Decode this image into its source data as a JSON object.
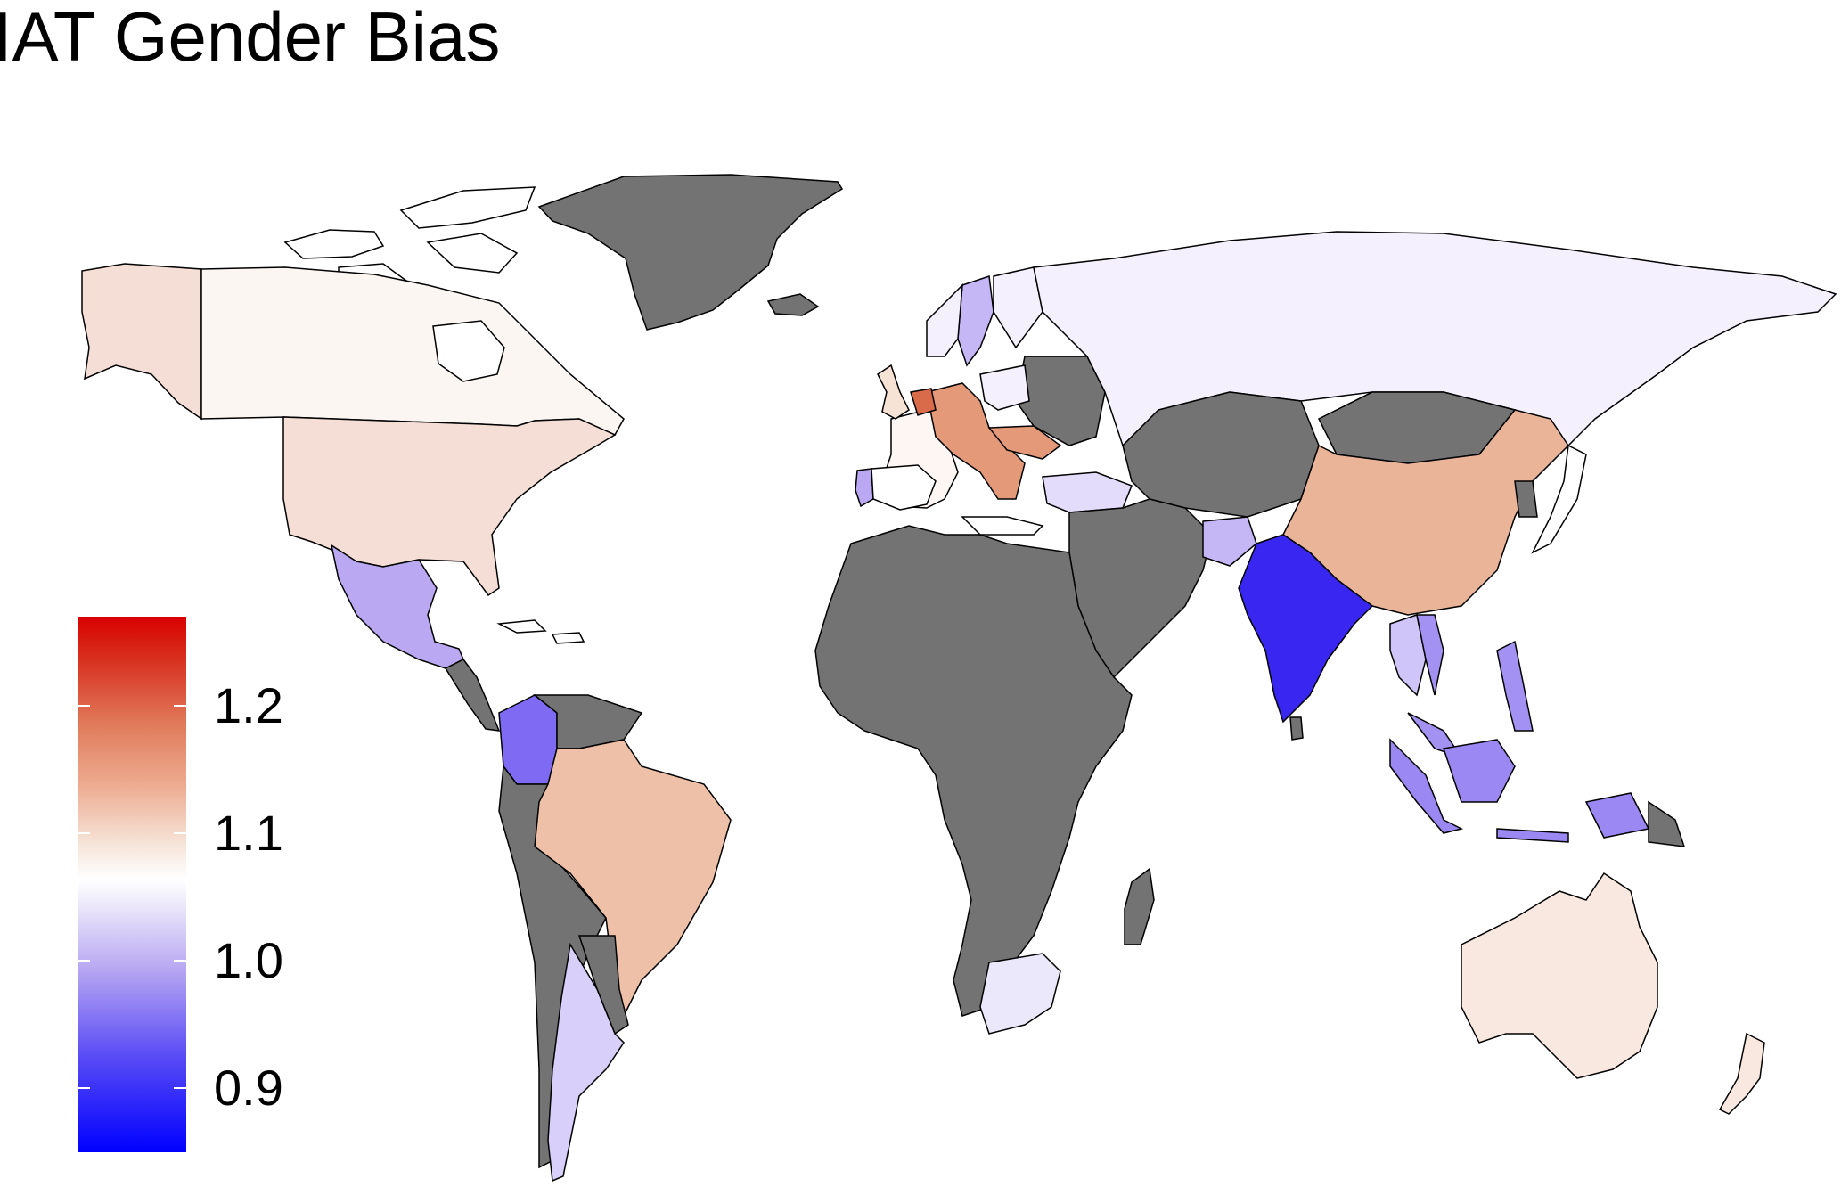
{
  "title": "IAT Gender Bias",
  "legend": {
    "ticks": [
      {
        "value": 1.2,
        "label": "1.2"
      },
      {
        "value": 1.1,
        "label": "1.1"
      },
      {
        "value": 1.0,
        "label": "1.0"
      },
      {
        "value": 0.9,
        "label": "0.9"
      }
    ],
    "range": [
      0.85,
      1.27
    ],
    "colors": {
      "low": "#0000ff",
      "mid": "#ffffff",
      "high": "#d80000",
      "no_data": "#737373"
    }
  },
  "countries": [
    {
      "name": "Greenland",
      "value": null
    },
    {
      "name": "Canada",
      "value": 1.085
    },
    {
      "name": "Alaska",
      "value": 1.12
    },
    {
      "name": "United States",
      "value": 1.12
    },
    {
      "name": "Mexico",
      "value": 0.97
    },
    {
      "name": "Colombia",
      "value": 0.94
    },
    {
      "name": "Brazil",
      "value": 1.15
    },
    {
      "name": "Argentina",
      "value": 1.0
    },
    {
      "name": "Russia",
      "value": 1.04
    },
    {
      "name": "China",
      "value": 1.15
    },
    {
      "name": "India",
      "value": 0.88
    },
    {
      "name": "Australia",
      "value": 1.1
    },
    {
      "name": "South Africa",
      "value": 1.03
    },
    {
      "name": "Indonesia",
      "value": 0.95
    },
    {
      "name": "Europe",
      "value": 1.17
    }
  ]
}
